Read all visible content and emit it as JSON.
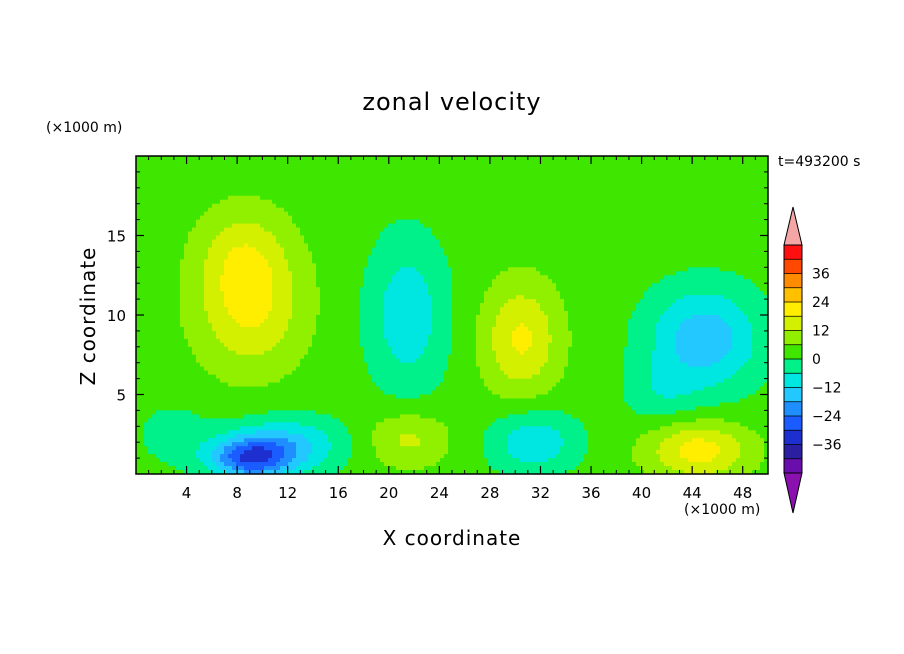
{
  "title": "zonal velocity",
  "time_label": "t=493200 s",
  "chart_data": {
    "type": "heatmap",
    "title": "zonal velocity",
    "xlabel": "X coordinate",
    "ylabel": "Z coordinate",
    "x_unit": "(×1000 m)",
    "y_unit": "(×1000 m)",
    "xlim": [
      0,
      50
    ],
    "ylim": [
      0,
      20
    ],
    "x_ticks": [
      4,
      8,
      12,
      16,
      20,
      24,
      28,
      32,
      36,
      40,
      44,
      48
    ],
    "y_ticks": [
      5,
      10,
      15
    ],
    "colorbar": {
      "levels": [
        -42,
        -36,
        -30,
        -24,
        -18,
        -12,
        -6,
        0,
        6,
        12,
        18,
        24,
        30,
        36,
        42
      ],
      "tick_labels": [
        36,
        24,
        12,
        0,
        -12,
        -24,
        -36
      ],
      "colors": [
        "#6a0dad",
        "#2a1fa0",
        "#1e2fd0",
        "#1a5cff",
        "#1f8fff",
        "#22c8ff",
        "#00e6e0",
        "#00f08a",
        "#3ee600",
        "#90f000",
        "#d2f000",
        "#ffee00",
        "#ffc000",
        "#ff8c00",
        "#ff4800",
        "#ff1010"
      ],
      "under_color": "#8a10b0",
      "over_color": "#f4a6a6",
      "extend": "both"
    },
    "features": [
      {
        "x": 9,
        "z": 10.5,
        "value": 16,
        "sx": 4.2,
        "sz": 4.0
      },
      {
        "x": 8.5,
        "z": 14,
        "value": 9,
        "sx": 3.5,
        "sz": 3.0
      },
      {
        "x": 9,
        "z": 1,
        "value": -28,
        "sx": 3.2,
        "sz": 1.3
      },
      {
        "x": 12,
        "z": 1.8,
        "value": -16,
        "sx": 4.5,
        "sz": 1.8
      },
      {
        "x": 3,
        "z": 2.5,
        "value": -6,
        "sx": 3.0,
        "sz": 2.0
      },
      {
        "x": 21.5,
        "z": 10,
        "value": -13,
        "sx": 3.2,
        "sz": 5.0
      },
      {
        "x": 21.5,
        "z": 2.2,
        "value": 11,
        "sx": 3.2,
        "sz": 1.8
      },
      {
        "x": 30.5,
        "z": 8.5,
        "value": 16,
        "sx": 3.0,
        "sz": 3.5
      },
      {
        "x": 31.5,
        "z": 2,
        "value": -14,
        "sx": 3.5,
        "sz": 2.0
      },
      {
        "x": 45,
        "z": 8.5,
        "value": -19,
        "sx": 4.5,
        "sz": 3.3
      },
      {
        "x": 44.5,
        "z": 1.5,
        "value": 18,
        "sx": 4.0,
        "sz": 1.8
      },
      {
        "x": 41.5,
        "z": 5,
        "value": -6,
        "sx": 3.0,
        "sz": 2.0
      }
    ]
  }
}
